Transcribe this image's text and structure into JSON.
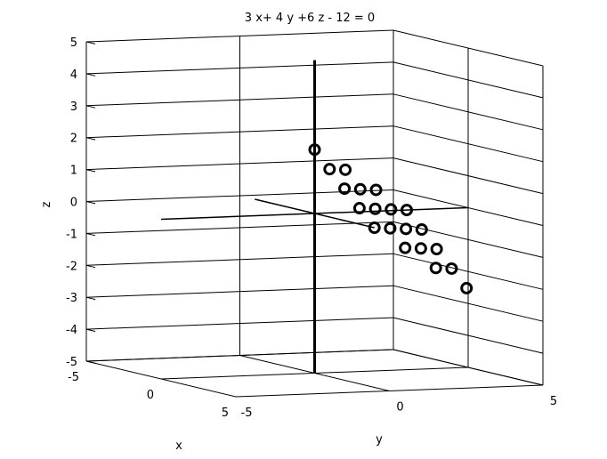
{
  "chart_data": {
    "type": "scatter3d",
    "title": "3 x+ 4 y +6 z - 12 = 0",
    "xlabel": "x",
    "ylabel": "y",
    "zlabel": "z",
    "xlim": [
      -5,
      5
    ],
    "ylim": [
      -5,
      5
    ],
    "zlim": [
      -5,
      5
    ],
    "xticks": [
      "-5",
      "0",
      "5"
    ],
    "yticks": [
      "-5",
      "0",
      "5"
    ],
    "zticks": [
      "-5",
      "-4",
      "-3",
      "-2",
      "-1",
      "0",
      "1",
      "2",
      "3",
      "4",
      "5"
    ],
    "grid": true,
    "marker": "circle",
    "color": "#000000",
    "axis_lines": [
      {
        "axis": "x",
        "from": [
          -4,
          0,
          0
        ],
        "to": [
          4,
          0,
          0
        ]
      },
      {
        "axis": "y",
        "from": [
          0,
          -5,
          0
        ],
        "to": [
          0,
          5,
          0
        ]
      },
      {
        "axis": "z",
        "from": [
          0,
          0,
          -5
        ],
        "to": [
          0,
          0,
          4.8
        ]
      }
    ],
    "points": [
      [
        0,
        0,
        2
      ],
      [
        1,
        0,
        1.5
      ],
      [
        0,
        1,
        1.333
      ],
      [
        2,
        0,
        1
      ],
      [
        1,
        1,
        0.833
      ],
      [
        0,
        2,
        0.667
      ],
      [
        3,
        0,
        0.5
      ],
      [
        2,
        1,
        0.333
      ],
      [
        1,
        2,
        0.167
      ],
      [
        0,
        3,
        0
      ],
      [
        4,
        0,
        0
      ],
      [
        3,
        1,
        -0.167
      ],
      [
        2,
        2,
        -0.333
      ],
      [
        1,
        3,
        -0.5
      ],
      [
        4,
        1,
        -0.667
      ],
      [
        3,
        2,
        -0.833
      ],
      [
        2,
        3,
        -1
      ],
      [
        4,
        2,
        -1.333
      ],
      [
        3,
        3,
        -1.5
      ],
      [
        4,
        3,
        -2
      ]
    ]
  }
}
